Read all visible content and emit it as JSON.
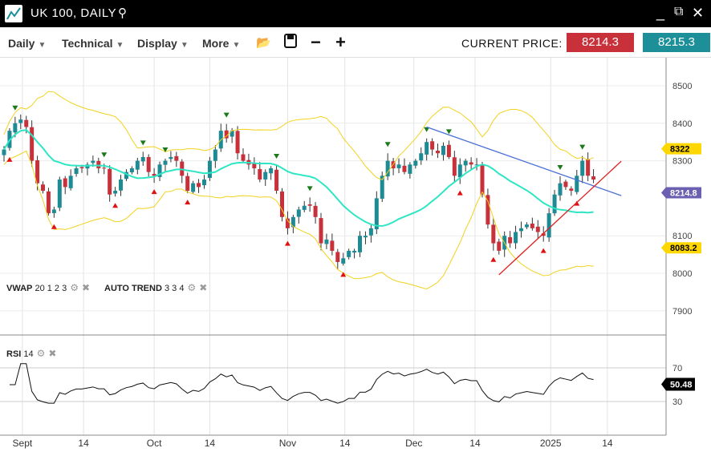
{
  "window": {
    "title": "UK 100, DAILY",
    "icons": [
      "chart-logo-icon",
      "search-icon",
      "minimize-icon",
      "detach-icon",
      "close-icon"
    ]
  },
  "toolbar": {
    "menus": [
      "Daily",
      "Technical",
      "Display",
      "More"
    ],
    "tools": [
      "open-folder-icon",
      "save-icon",
      "zoom-out-icon",
      "zoom-in-icon"
    ],
    "current_price_label": "CURRENT PRICE:",
    "bid": "8214.3",
    "ask": "8215.3",
    "bid_color": "#c8303a",
    "ask_color": "#1d8f98"
  },
  "indicators": {
    "vwap": {
      "name": "VWAP",
      "params": "20 1 2 3"
    },
    "auto_trend": {
      "name": "AUTO TREND",
      "params": "3 3 4"
    },
    "rsi": {
      "name": "RSI",
      "params": "14"
    }
  },
  "chart_data": {
    "type": "candlestick",
    "price_axis": {
      "ticks": [
        8500,
        8400,
        8300,
        8100,
        8000,
        7900
      ],
      "range": [
        7820,
        8570
      ]
    },
    "rsi_axis": {
      "ticks": [
        70,
        30
      ]
    },
    "x_ticks": [
      {
        "label": "Sept",
        "at": 3.3
      },
      {
        "label": "14",
        "at": 14.3
      },
      {
        "label": "Oct",
        "at": 27
      },
      {
        "label": "14",
        "at": 37
      },
      {
        "label": "Nov",
        "at": 51
      },
      {
        "label": "14",
        "at": 61.3
      },
      {
        "label": "Dec",
        "at": 73.7
      },
      {
        "label": "14",
        "at": 84.7
      },
      {
        "label": "2025",
        "at": 98.3
      },
      {
        "label": "14",
        "at": 108.5
      }
    ],
    "closes": [
      8330,
      8380,
      8400,
      8410,
      8390,
      8300,
      8240,
      8220,
      8160,
      8170,
      8250,
      8230,
      8260,
      8280,
      8280,
      8290,
      8300,
      8280,
      8280,
      8210,
      8220,
      8250,
      8270,
      8280,
      8300,
      8310,
      8270,
      8260,
      8290,
      8300,
      8310,
      8300,
      8260,
      8220,
      8240,
      8230,
      8250,
      8300,
      8330,
      8380,
      8360,
      8380,
      8320,
      8300,
      8290,
      8280,
      8250,
      8270,
      8280,
      8220,
      8150,
      8120,
      8150,
      8170,
      8180,
      8180,
      8150,
      8080,
      8090,
      8060,
      8030,
      8040,
      8060,
      8060,
      8100,
      8100,
      8120,
      8200,
      8260,
      8300,
      8280,
      8290,
      8270,
      8290,
      8300,
      8320,
      8350,
      8330,
      8320,
      8340,
      8310,
      8260,
      8290,
      8300,
      8290,
      8290,
      8210,
      8130,
      8080,
      8060,
      8100,
      8080,
      8110,
      8120,
      8130,
      8120,
      8110,
      8100,
      8160,
      8210,
      8240,
      8230,
      8220,
      8260,
      8300,
      8260,
      8250
    ],
    "fractal_highs": [
      2,
      18,
      25,
      29,
      40,
      49,
      55,
      69,
      76,
      80,
      100,
      104
    ],
    "fractal_lows": [
      1,
      9,
      20,
      27,
      33,
      51,
      61,
      82,
      88,
      97,
      103
    ],
    "trendlines": [
      {
        "color": "#4a6fd6",
        "from": [
          76,
          8390
        ],
        "to": [
          111,
          8207
        ]
      },
      {
        "color": "#e02020",
        "from": [
          89,
          7996
        ],
        "to": [
          111,
          8299
        ]
      }
    ],
    "labels": [
      {
        "value": "8322",
        "color": "#ffd700",
        "price": 8322
      },
      {
        "value": "8214.8",
        "color": "#6a5fb0",
        "price": 8214.8
      },
      {
        "value": "8083.2",
        "color": "#ffd700",
        "price": 8083.2
      }
    ],
    "rsi_label": "50.48",
    "colors": {
      "up": "#1e8a94",
      "down": "#c8303a",
      "bands": "#f2d21b",
      "vwap": "#2ee6c4"
    }
  }
}
